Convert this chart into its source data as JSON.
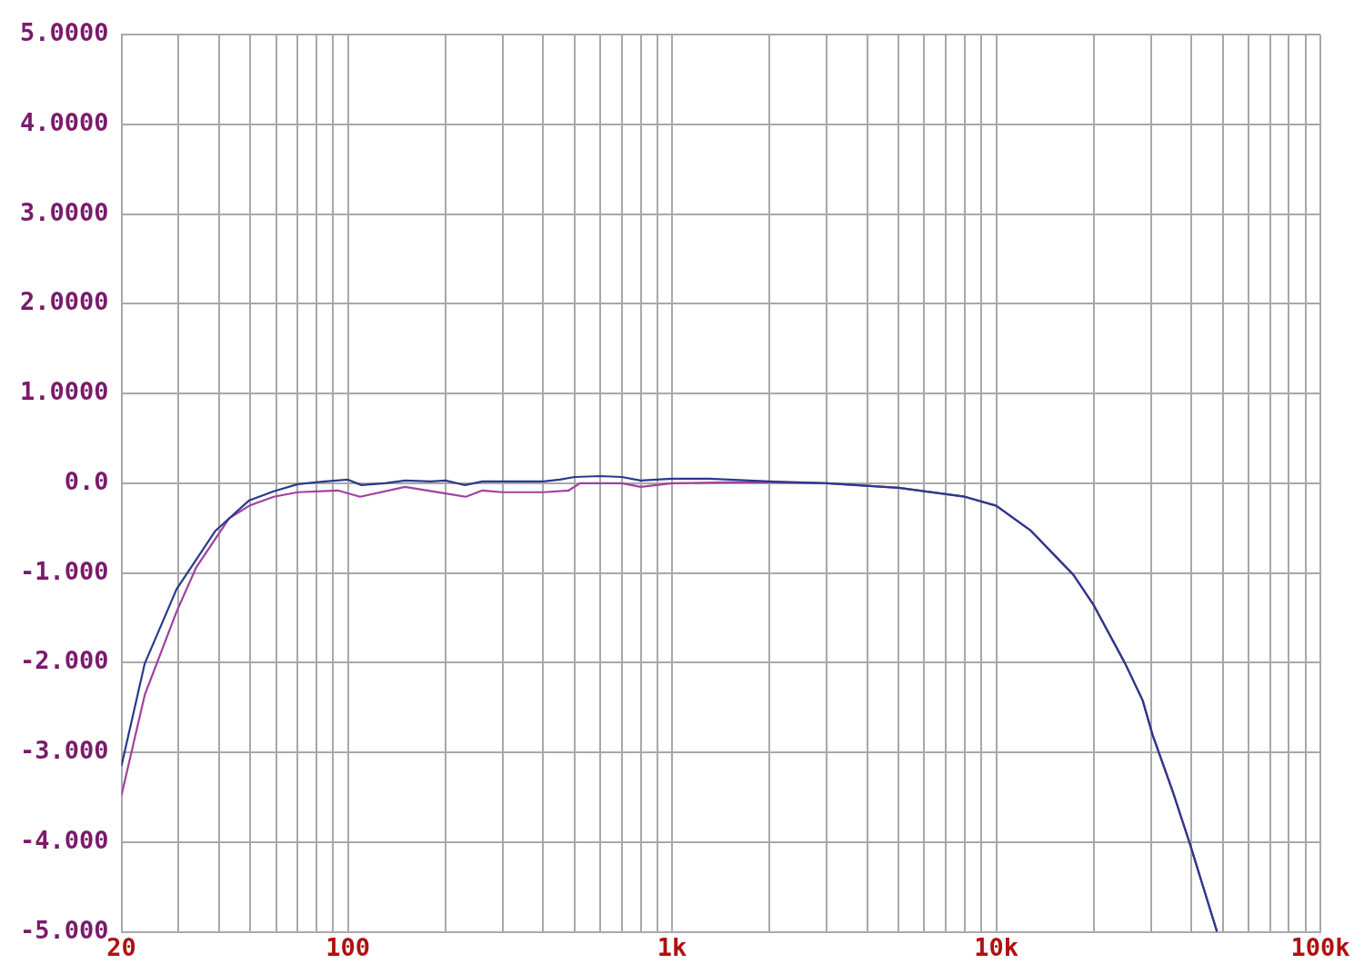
{
  "chart_data": {
    "type": "line",
    "log": "x",
    "grid": true,
    "legend": false,
    "marker": "none",
    "line_style": "solid",
    "xlim": [
      20,
      100000
    ],
    "xticks": [
      20,
      {
        "value": 30,
        "label": null
      },
      {
        "value": 40,
        "label": null
      },
      {
        "value": 50,
        "label": null
      },
      {
        "value": 60,
        "label": null
      },
      {
        "value": 70,
        "label": null
      },
      {
        "value": 80,
        "label": null
      },
      {
        "value": 90,
        "label": null
      },
      100,
      {
        "value": 200,
        "label": null
      },
      {
        "value": 300,
        "label": null
      },
      {
        "value": 400,
        "label": null
      },
      {
        "value": 500,
        "label": null
      },
      {
        "value": 600,
        "label": null
      },
      {
        "value": 700,
        "label": null
      },
      {
        "value": 800,
        "label": null
      },
      {
        "value": 900,
        "label": null
      },
      {
        "value": 1000,
        "label": "1k"
      },
      {
        "value": 2000,
        "label": null
      },
      {
        "value": 3000,
        "label": null
      },
      {
        "value": 4000,
        "label": null
      },
      {
        "value": 5000,
        "label": null
      },
      {
        "value": 6000,
        "label": null
      },
      {
        "value": 7000,
        "label": null
      },
      {
        "value": 8000,
        "label": null
      },
      {
        "value": 9000,
        "label": null
      },
      {
        "value": 10000,
        "label": "10k"
      },
      {
        "value": 20000,
        "label": null
      },
      {
        "value": 30000,
        "label": null
      },
      {
        "value": 40000,
        "label": null
      },
      {
        "value": 50000,
        "label": null
      },
      {
        "value": 60000,
        "label": null
      },
      {
        "value": 70000,
        "label": null
      },
      {
        "value": 80000,
        "label": null
      },
      {
        "value": 90000,
        "label": null
      },
      {
        "value": 100000,
        "label": "100k"
      }
    ],
    "ylim": [
      -5,
      5
    ],
    "yticks": [
      {
        "value": -5,
        "label": "-5.000"
      },
      {
        "value": -4,
        "label": "-4.000"
      },
      {
        "value": -3,
        "label": "-3.000"
      },
      {
        "value": -2,
        "label": "-2.000"
      },
      {
        "value": -1,
        "label": "-1.000"
      },
      {
        "value": 0,
        "label": "0.0"
      },
      {
        "value": 1,
        "label": "1.0000"
      },
      {
        "value": 2,
        "label": "2.0000"
      },
      {
        "value": 3,
        "label": "3.0000"
      },
      {
        "value": 4,
        "label": "4.0000"
      },
      {
        "value": 5,
        "label": "5.0000"
      }
    ],
    "series": [
      {
        "color": "#2a3a8a",
        "x": [
          20,
          23.6,
          29.6,
          39,
          49.6,
          59,
          70,
          85,
          100,
          110,
          130,
          150,
          180,
          200,
          230,
          260,
          300,
          400,
          450,
          500,
          600,
          700,
          800,
          1000,
          1300,
          2000,
          3000,
          5000,
          8000,
          10000,
          12800,
          17300,
          20000,
          25000,
          28300,
          30400,
          35000,
          39600,
          48000
        ],
        "values": [
          -3.15,
          -2.01,
          -1.18,
          -0.53,
          -0.19,
          -0.09,
          -0.01,
          0.02,
          0.04,
          -0.02,
          0.0,
          0.03,
          0.02,
          0.03,
          -0.02,
          0.02,
          0.02,
          0.02,
          0.04,
          0.07,
          0.08,
          0.07,
          0.03,
          0.05,
          0.05,
          0.02,
          0.0,
          -0.05,
          -0.15,
          -0.25,
          -0.53,
          -1.02,
          -1.36,
          -2.01,
          -2.42,
          -2.81,
          -3.43,
          -4.02,
          -5.0
        ]
      },
      {
        "color": "#a040a0",
        "x": [
          20,
          23.6,
          29.6,
          34,
          43,
          49.6,
          59,
          70,
          93,
          109,
          150,
          231,
          260,
          300,
          400,
          480,
          520,
          700,
          800,
          1000,
          1500,
          2000,
          3000,
          5000,
          8000,
          10000,
          12800,
          17300,
          20000,
          25000,
          28300,
          30400,
          35000,
          39600,
          48000
        ],
        "values": [
          -3.48,
          -2.36,
          -1.43,
          -0.94,
          -0.39,
          -0.25,
          -0.15,
          -0.1,
          -0.08,
          -0.15,
          -0.04,
          -0.15,
          -0.08,
          -0.1,
          -0.1,
          -0.08,
          0.0,
          0.0,
          -0.04,
          0.0,
          0.01,
          0.01,
          0.0,
          -0.05,
          -0.15,
          -0.25,
          -0.53,
          -1.02,
          -1.36,
          -2.01,
          -2.42,
          -2.81,
          -3.43,
          -4.02,
          -5.0
        ]
      }
    ]
  }
}
